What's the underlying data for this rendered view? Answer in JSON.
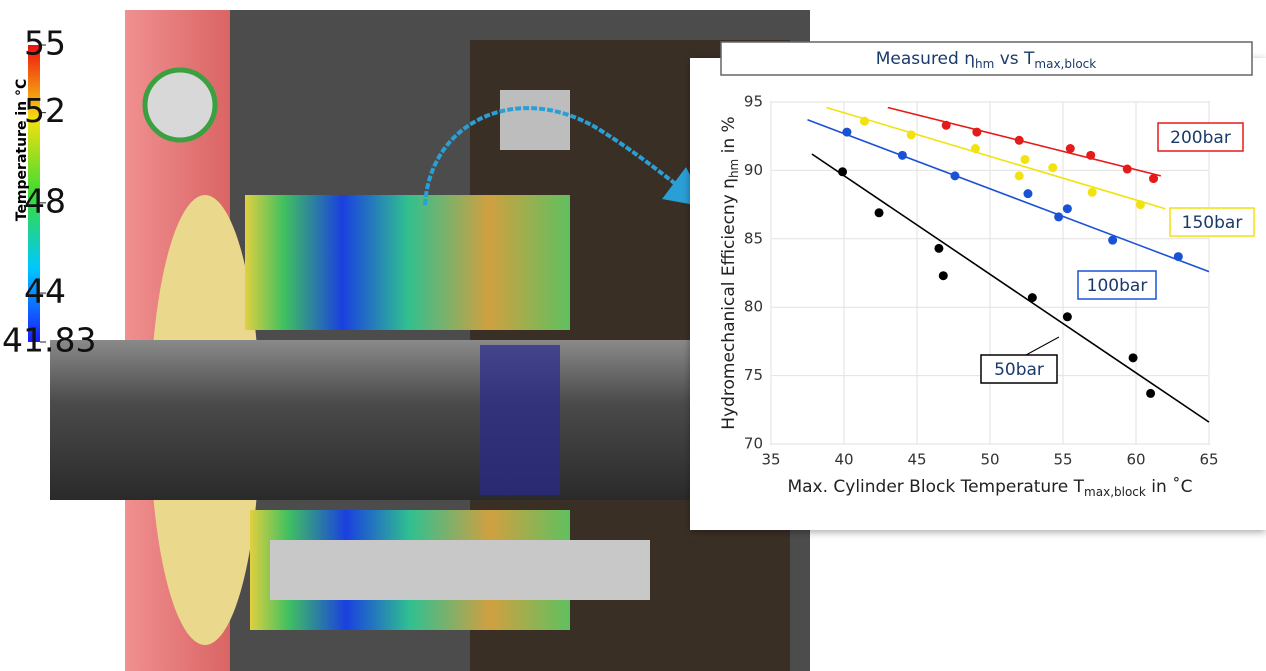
{
  "chart_data": {
    "type": "scatter",
    "title": [
      "Measured η",
      "hm",
      " vs T",
      "max,block"
    ],
    "x_label": [
      "Max. Cylinder Block Temperature T",
      "max,block",
      " in ˚C"
    ],
    "y_label": [
      "Hydromechanical Efficiecny η",
      "hm",
      " in %"
    ],
    "xlim": [
      35,
      65
    ],
    "xticks": [
      35,
      40,
      45,
      50,
      55,
      60,
      65
    ],
    "ylim": [
      70,
      95
    ],
    "yticks": [
      70,
      75,
      80,
      85,
      90,
      95
    ],
    "grid": true,
    "series": [
      {
        "name": "200bar",
        "color": "#e51a1a",
        "x": [
          47.0,
          49.1,
          52.0,
          55.5,
          56.9,
          59.4,
          61.2
        ],
        "values": [
          93.3,
          92.8,
          92.2,
          91.6,
          91.1,
          90.1,
          89.4
        ],
        "fit_x": [
          43.0,
          61.7
        ],
        "fit_values": [
          94.6,
          89.6
        ]
      },
      {
        "name": "150bar",
        "color": "#f2e20f",
        "x": [
          41.4,
          44.6,
          49.0,
          52.0,
          52.4,
          54.3,
          57.0,
          60.3
        ],
        "values": [
          93.6,
          92.6,
          91.6,
          89.6,
          90.8,
          90.2,
          88.4,
          87.5
        ],
        "fit_x": [
          38.8,
          62.0
        ],
        "fit_values": [
          94.6,
          87.2
        ]
      },
      {
        "name": "100bar",
        "color": "#1a52d6",
        "x": [
          40.2,
          44.0,
          47.6,
          52.6,
          54.7,
          55.3,
          58.4,
          62.9
        ],
        "values": [
          92.8,
          91.1,
          89.6,
          88.3,
          86.6,
          87.2,
          84.9,
          83.7
        ],
        "fit_x": [
          37.5,
          65.0
        ],
        "fit_values": [
          93.7,
          82.6
        ]
      },
      {
        "name": "50bar",
        "color": "#000000",
        "x": [
          39.9,
          42.4,
          46.5,
          46.8,
          52.9,
          55.3,
          59.8,
          61.0
        ],
        "values": [
          89.9,
          86.9,
          84.3,
          82.3,
          80.7,
          79.3,
          76.3,
          73.7
        ],
        "fit_x": [
          37.8,
          65.0
        ],
        "fit_values": [
          91.2,
          71.6
        ]
      }
    ]
  },
  "colorbar": {
    "title": "Temperature in °C",
    "lim": [
      41.83,
      55
    ],
    "ticks": [
      41.83,
      44,
      48,
      52,
      55
    ]
  }
}
